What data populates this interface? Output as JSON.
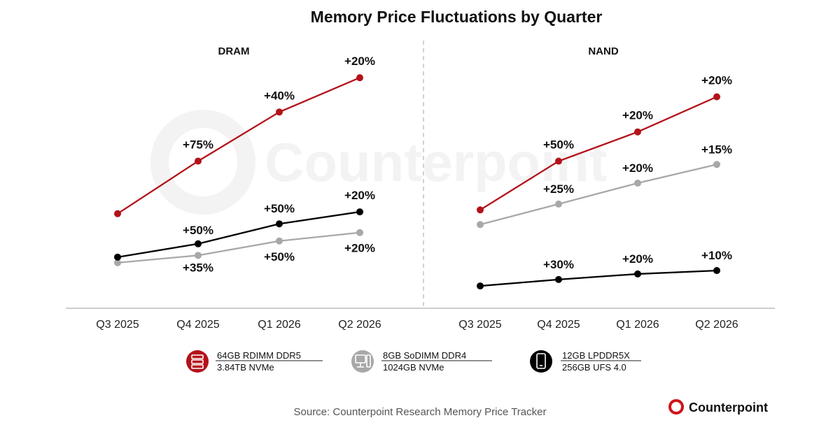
{
  "title": "Memory Price Fluctuations by Quarter",
  "source": "Source: Counterpoint Research Memory Price Tracker",
  "brand": "Counterpoint",
  "watermark": "Counterpoint",
  "colors": {
    "red": "#b3121a",
    "gray": "#a8a8a8",
    "black": "#000000",
    "axis": "#bdbdbd"
  },
  "legend": [
    {
      "icon": "server-icon",
      "color": "#b3121a",
      "line1": "64GB RDIMM DDR5",
      "line2": "3.84TB NVMe"
    },
    {
      "icon": "desktop-icon",
      "color": "#a8a8a8",
      "line1": "8GB SoDIMM DDR4",
      "line2": "1024GB NVMe"
    },
    {
      "icon": "smartphone-icon",
      "color": "#000000",
      "line1": "12GB LPDDR5X",
      "line2": "256GB UFS 4.0"
    }
  ],
  "chart_data": [
    {
      "type": "line",
      "title": "DRAM",
      "categories": [
        "Q3 2025",
        "Q4 2025",
        "Q1 2026",
        "Q2 2026"
      ],
      "series": [
        {
          "name": "64GB RDIMM DDR5",
          "color": "#b3121a",
          "values": [
            100,
            175,
            245,
            294
          ],
          "labels": [
            "",
            "+75%",
            "+40%",
            "+20%"
          ]
        },
        {
          "name": "8GB SoDIMM DDR4",
          "color": "#a8a8a8",
          "values": [
            30,
            40.5,
            61,
            73
          ],
          "labels": [
            "",
            "+35%",
            "+50%",
            "+20%"
          ]
        },
        {
          "name": "12GB LPDDR5X",
          "color": "#000000",
          "values": [
            38,
            57,
            85.5,
            102.6
          ],
          "labels": [
            "",
            "+50%",
            "+50%",
            "+20%"
          ]
        }
      ],
      "ylim": [
        -24,
        353
      ]
    },
    {
      "type": "line",
      "title": "NAND",
      "categories": [
        "Q3 2025",
        "Q4 2025",
        "Q1 2026",
        "Q2 2026"
      ],
      "series": [
        {
          "name": "3.84TB NVMe",
          "color": "#b3121a",
          "values": [
            100,
            150,
            180,
            216
          ],
          "labels": [
            "",
            "+50%",
            "+20%",
            "+20%"
          ]
        },
        {
          "name": "1024GB NVMe",
          "color": "#a8a8a8",
          "values": [
            85,
            106,
            127.5,
            146.6
          ],
          "labels": [
            "",
            "+25%",
            "+20%",
            "+15%"
          ]
        },
        {
          "name": "256GB UFS 4.0",
          "color": "#000000",
          "values": [
            22,
            28.6,
            34.3,
            37.8
          ],
          "labels": [
            "",
            "+30%",
            "+20%",
            "+10%"
          ]
        }
      ],
      "ylim": [
        7,
        278
      ]
    }
  ]
}
